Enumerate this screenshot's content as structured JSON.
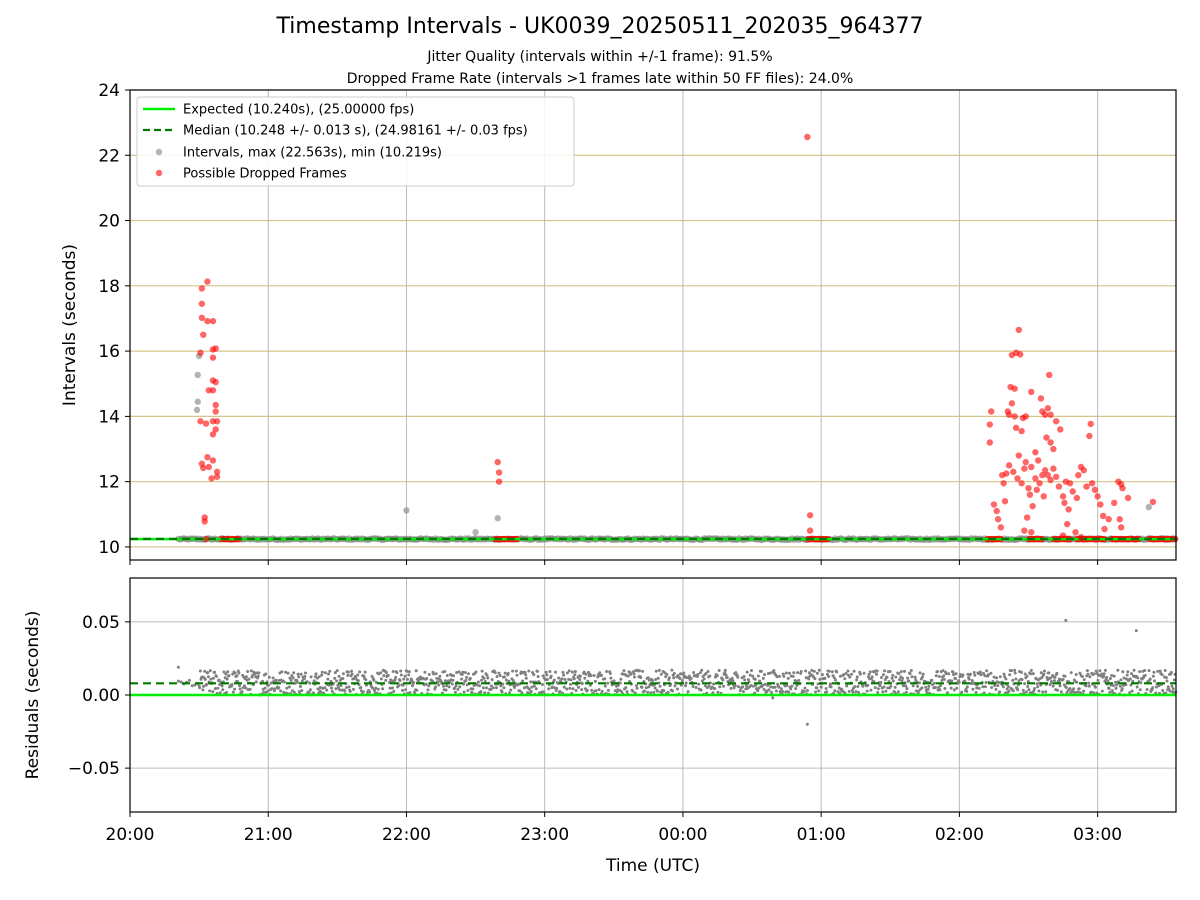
{
  "figure": {
    "title": "Timestamp Intervals - UK0039_20250511_202035_964377",
    "subtitle_1": "Jitter Quality (intervals within +/-1 frame): 91.5%",
    "subtitle_2": "Dropped Frame Rate (intervals >1 frames late within 50 FF files): 24.0%"
  },
  "colors": {
    "expected": "#00ee00",
    "median": "#007700",
    "intervals": "#808080",
    "dropped": "#ff0000",
    "hgrid_top": "#d8c48a",
    "grid": "#bbbbbb"
  },
  "chart_data": [
    {
      "type": "scatter",
      "title": "",
      "xlabel": "",
      "ylabel": "Intervals (seconds)",
      "x_unit": "hours since 20:00 UTC",
      "xlim": [
        0,
        7.567
      ],
      "ylim": [
        9.6,
        24
      ],
      "yticks": [
        10,
        12,
        14,
        16,
        18,
        20,
        22,
        24
      ],
      "x_tick_labels": [
        "20:00",
        "21:00",
        "22:00",
        "23:00",
        "00:00",
        "01:00",
        "02:00",
        "03:00"
      ],
      "grid": "horizontal lines at y ticks; vertical lines at each hour",
      "legend": {
        "placement": "top-left",
        "entries": [
          "Expected (10.240s), (25.00000 fps)",
          "Median (10.248 +/- 0.013 s), (24.98161 +/- 0.03 fps)",
          "Intervals, max (22.563s), min (10.219s)",
          "Possible Dropped Frames"
        ]
      },
      "expected_line": 10.24,
      "median_line": 10.248,
      "baseline_band": {
        "y": 10.24,
        "x_range": [
          0.35,
          7.567
        ]
      },
      "series": [
        {
          "name": "Intervals, max (22.563s), min (10.219s)",
          "points": [
            [
              0.5,
              15.85
            ],
            [
              0.49,
              15.27
            ],
            [
              0.49,
              14.45
            ],
            [
              0.485,
              14.2
            ],
            [
              2.0,
              11.12
            ],
            [
              2.5,
              10.45
            ],
            [
              2.66,
              10.88
            ],
            [
              7.37,
              11.22
            ]
          ]
        },
        {
          "name": "Possible Dropped Frames",
          "runs": [
            [
              0.66,
              0.8
            ],
            [
              2.64,
              2.8
            ],
            [
              4.9,
              5.05
            ],
            [
              6.2,
              6.3
            ],
            [
              6.5,
              6.6
            ],
            [
              6.68,
              6.8
            ],
            [
              6.85,
              7.05
            ],
            [
              7.1,
              7.3
            ],
            [
              7.37,
              7.567
            ]
          ],
          "run_value": 10.24,
          "points": [
            [
              0.52,
              17.92
            ],
            [
              0.56,
              18.13
            ],
            [
              0.52,
              17.45
            ],
            [
              0.52,
              17.02
            ],
            [
              0.56,
              16.92
            ],
            [
              0.6,
              16.92
            ],
            [
              0.53,
              16.5
            ],
            [
              0.51,
              15.95
            ],
            [
              0.6,
              16.05
            ],
            [
              0.62,
              16.08
            ],
            [
              0.6,
              15.8
            ],
            [
              0.6,
              15.1
            ],
            [
              0.62,
              15.05
            ],
            [
              0.57,
              14.8
            ],
            [
              0.6,
              14.8
            ],
            [
              0.62,
              14.35
            ],
            [
              0.62,
              14.15
            ],
            [
              0.51,
              13.85
            ],
            [
              0.55,
              13.78
            ],
            [
              0.6,
              13.85
            ],
            [
              0.63,
              13.85
            ],
            [
              0.62,
              13.6
            ],
            [
              0.6,
              13.45
            ],
            [
              0.56,
              12.75
            ],
            [
              0.6,
              12.65
            ],
            [
              0.52,
              12.55
            ],
            [
              0.53,
              12.42
            ],
            [
              0.57,
              12.45
            ],
            [
              0.63,
              12.3
            ],
            [
              0.63,
              12.15
            ],
            [
              0.59,
              12.1
            ],
            [
              0.54,
              10.9
            ],
            [
              0.54,
              10.78
            ],
            [
              0.55,
              10.24
            ],
            [
              2.66,
              12.6
            ],
            [
              2.67,
              12.28
            ],
            [
              2.67,
              12.0
            ],
            [
              4.9,
              22.56
            ],
            [
              4.92,
              10.97
            ],
            [
              4.92,
              10.5
            ],
            [
              6.43,
              16.65
            ],
            [
              6.41,
              15.95
            ],
            [
              6.38,
              15.88
            ],
            [
              6.44,
              15.9
            ],
            [
              6.65,
              15.27
            ],
            [
              6.52,
              14.75
            ],
            [
              6.37,
              14.9
            ],
            [
              6.4,
              14.85
            ],
            [
              6.48,
              14.0
            ],
            [
              6.46,
              13.95
            ],
            [
              6.35,
              14.15
            ],
            [
              6.38,
              14.4
            ],
            [
              6.23,
              14.15
            ],
            [
              6.22,
              13.75
            ],
            [
              6.22,
              13.2
            ],
            [
              6.36,
              14.05
            ],
            [
              6.4,
              14.0
            ],
            [
              6.41,
              13.65
            ],
            [
              6.45,
              13.55
            ],
            [
              6.59,
              14.55
            ],
            [
              6.6,
              14.15
            ],
            [
              6.62,
              14.05
            ],
            [
              6.64,
              14.25
            ],
            [
              6.66,
              14.05
            ],
            [
              6.7,
              13.85
            ],
            [
              6.73,
              13.6
            ],
            [
              6.63,
              13.35
            ],
            [
              6.66,
              13.2
            ],
            [
              6.68,
              13.0
            ],
            [
              6.95,
              13.77
            ],
            [
              6.94,
              13.4
            ],
            [
              6.43,
              12.8
            ],
            [
              6.48,
              12.6
            ],
            [
              6.52,
              12.45
            ],
            [
              6.34,
              12.25
            ],
            [
              6.36,
              12.5
            ],
            [
              6.39,
              12.3
            ],
            [
              6.42,
              12.1
            ],
            [
              6.45,
              11.95
            ],
            [
              6.5,
              11.8
            ],
            [
              6.55,
              12.1
            ],
            [
              6.56,
              11.75
            ],
            [
              6.58,
              11.95
            ],
            [
              6.6,
              12.2
            ],
            [
              6.62,
              12.35
            ],
            [
              6.64,
              12.2
            ],
            [
              6.66,
              12.05
            ],
            [
              6.68,
              12.4
            ],
            [
              6.7,
              12.15
            ],
            [
              6.72,
              11.85
            ],
            [
              6.75,
              11.55
            ],
            [
              6.76,
              11.35
            ],
            [
              6.8,
              11.95
            ],
            [
              6.82,
              11.7
            ],
            [
              6.86,
              12.2
            ],
            [
              6.88,
              12.45
            ],
            [
              6.9,
              12.35
            ],
            [
              6.92,
              11.85
            ],
            [
              6.96,
              11.95
            ],
            [
              6.98,
              11.75
            ],
            [
              7.0,
              11.55
            ],
            [
              7.02,
              11.3
            ],
            [
              7.04,
              10.95
            ],
            [
              7.05,
              10.55
            ],
            [
              7.08,
              10.85
            ],
            [
              7.12,
              11.35
            ],
            [
              7.15,
              12.0
            ],
            [
              7.17,
              11.92
            ],
            [
              7.18,
              11.8
            ],
            [
              7.22,
              11.5
            ],
            [
              7.16,
              10.85
            ],
            [
              7.17,
              10.6
            ],
            [
              6.25,
              11.3
            ],
            [
              6.27,
              11.1
            ],
            [
              6.28,
              10.85
            ],
            [
              6.3,
              10.6
            ],
            [
              6.33,
              11.4
            ],
            [
              6.47,
              10.5
            ],
            [
              6.52,
              10.45
            ],
            [
              6.49,
              10.9
            ],
            [
              6.78,
              10.7
            ],
            [
              6.75,
              10.35
            ],
            [
              6.84,
              10.45
            ],
            [
              6.88,
              10.3
            ],
            [
              7.4,
              11.38
            ],
            [
              6.55,
              12.9
            ],
            [
              6.57,
              12.65
            ],
            [
              6.47,
              12.4
            ],
            [
              6.31,
              12.2
            ],
            [
              6.32,
              11.95
            ],
            [
              6.77,
              12.0
            ],
            [
              6.85,
              11.5
            ],
            [
              6.79,
              11.15
            ],
            [
              6.61,
              11.55
            ],
            [
              6.53,
              11.25
            ],
            [
              6.51,
              11.6
            ]
          ]
        }
      ]
    },
    {
      "type": "scatter",
      "title": "",
      "xlabel": "Time (UTC)",
      "ylabel": "Residuals (seconds)",
      "x_unit": "hours since 20:00 UTC",
      "xlim": [
        0,
        7.567
      ],
      "ylim": [
        -0.08,
        0.08
      ],
      "yticks": [
        -0.05,
        0,
        0.05
      ],
      "ytick_labels": [
        "−0.05",
        "0.00",
        "0.05"
      ],
      "x_tick_labels": [
        "20:00",
        "21:00",
        "22:00",
        "23:00",
        "00:00",
        "01:00",
        "02:00",
        "03:00"
      ],
      "grid": "horizontal and vertical lines at ticks",
      "zero_line": 0.0,
      "median_line": 0.008,
      "band": {
        "x_range": [
          0.5,
          7.567
        ],
        "y_range": [
          0.0,
          0.017
        ]
      },
      "outliers": [
        [
          0.35,
          0.019
        ],
        [
          6.77,
          0.051
        ],
        [
          7.28,
          0.044
        ],
        [
          4.9,
          -0.02
        ],
        [
          4.65,
          -0.002
        ]
      ]
    }
  ]
}
